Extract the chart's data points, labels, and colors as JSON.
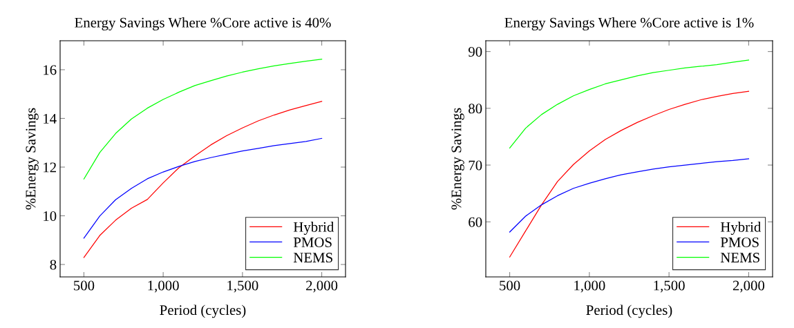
{
  "chart_data": [
    {
      "type": "line",
      "title": "Energy Savings Where %Core active is 40%",
      "xlabel": "Period (cycles)",
      "ylabel": "%Energy Savings",
      "x": [
        500,
        600,
        700,
        800,
        900,
        1000,
        1100,
        1200,
        1300,
        1400,
        1500,
        1600,
        1700,
        1800,
        1900,
        2000
      ],
      "series": [
        {
          "name": "Hybrid",
          "color": "#ff0000",
          "values": [
            8.29,
            9.19,
            9.82,
            10.31,
            10.67,
            11.35,
            11.98,
            12.46,
            12.91,
            13.29,
            13.61,
            13.9,
            14.14,
            14.35,
            14.53,
            14.7
          ]
        },
        {
          "name": "PMOS",
          "color": "#0000ff",
          "values": [
            9.08,
            9.99,
            10.66,
            11.13,
            11.52,
            11.8,
            12.03,
            12.23,
            12.39,
            12.53,
            12.66,
            12.77,
            12.88,
            12.97,
            13.05,
            13.18
          ]
        },
        {
          "name": "NEMS",
          "color": "#00ff00",
          "values": [
            11.51,
            12.6,
            13.38,
            13.98,
            14.42,
            14.78,
            15.08,
            15.35,
            15.55,
            15.74,
            15.9,
            16.04,
            16.16,
            16.26,
            16.35,
            16.43
          ]
        }
      ],
      "xlim": [
        350,
        2150
      ],
      "xticks": [
        500,
        {
          "value": 1000,
          "label": "1,000"
        },
        {
          "value": 1500,
          "label": "1,500"
        },
        {
          "value": 2000,
          "label": "2,000"
        }
      ],
      "ylim": [
        7.49,
        17.19
      ],
      "yticks": [
        8,
        10,
        12,
        14,
        16
      ],
      "legend": "bottom right",
      "grid": false
    },
    {
      "type": "line",
      "title": "Energy Savings Where %Core active is 1%",
      "xlabel": "Period (cycles)",
      "ylabel": "%Energy Savings",
      "x": [
        500,
        600,
        700,
        800,
        900,
        1000,
        1100,
        1200,
        1300,
        1400,
        1500,
        1600,
        1700,
        1800,
        1900,
        2000
      ],
      "series": [
        {
          "name": "Hybrid",
          "color": "#ff0000",
          "values": [
            53.8,
            58.4,
            63.0,
            67.1,
            70.1,
            72.5,
            74.5,
            76.1,
            77.5,
            78.7,
            79.8,
            80.7,
            81.5,
            82.1,
            82.6,
            83.0
          ]
        },
        {
          "name": "PMOS",
          "color": "#0000ff",
          "values": [
            58.2,
            61.0,
            63.0,
            64.6,
            65.9,
            66.8,
            67.6,
            68.3,
            68.8,
            69.3,
            69.7,
            70.0,
            70.3,
            70.6,
            70.8,
            71.1
          ]
        },
        {
          "name": "NEMS",
          "color": "#00ff00",
          "values": [
            73.0,
            76.5,
            78.9,
            80.7,
            82.2,
            83.3,
            84.3,
            85.0,
            85.7,
            86.3,
            86.7,
            87.1,
            87.4,
            87.7,
            88.1,
            88.5
          ]
        }
      ],
      "xlim": [
        350,
        2150
      ],
      "xticks": [
        500,
        {
          "value": 1000,
          "label": "1,000"
        },
        {
          "value": 1500,
          "label": "1,500"
        },
        {
          "value": 2000,
          "label": "2,000"
        }
      ],
      "ylim": [
        50.3,
        91.9
      ],
      "yticks": [
        60,
        70,
        80,
        90
      ],
      "legend": "bottom right",
      "grid": false
    }
  ]
}
